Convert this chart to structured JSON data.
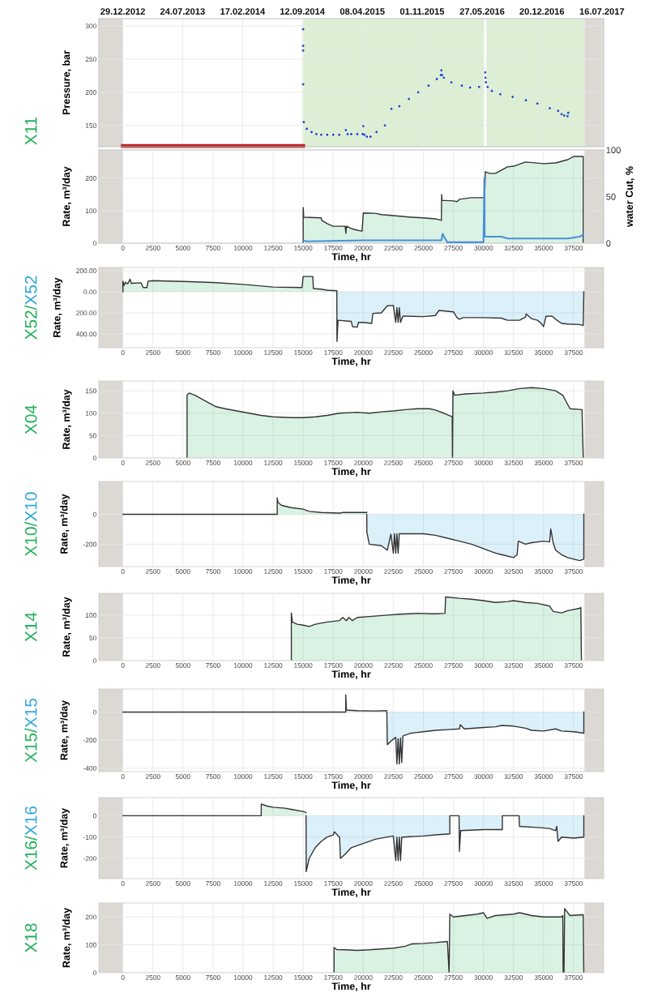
{
  "chart_data": [
    {
      "type": "scatter",
      "ylabel": "Pressure, bar",
      "xlim": [
        -2000,
        40000
      ],
      "ylim": [
        118,
        311
      ],
      "yticks": [
        150,
        200,
        250,
        300
      ],
      "x2lim": [
        "2012-10-07",
        "2017-07-22"
      ],
      "x2ticks": [
        {
          "value": "2012-12-29",
          "label": "29.12.2012"
        },
        {
          "value": "2013-07-24",
          "label": "24.07.2013"
        },
        {
          "value": "2014-02-17",
          "label": "17.02.2014"
        },
        {
          "value": "2014-09-12",
          "label": "12.09.2014"
        },
        {
          "value": "2015-04-08",
          "label": "08.04.2015"
        },
        {
          "value": "2015-11-01",
          "label": "01.11.2015"
        },
        {
          "value": "2016-05-27",
          "label": "27.05.2016"
        },
        {
          "value": "2016-12-20",
          "label": "20.12.2016"
        },
        {
          "value": "2017-07-16",
          "label": "16.07.2017"
        }
      ],
      "grid": true,
      "bands": [
        {
          "axis": "x",
          "from": -2000,
          "to": 0,
          "color": "#dcd9d5"
        },
        {
          "axis": "x",
          "from": 38400,
          "to": 40000,
          "color": "#dcd9d5"
        },
        {
          "axis": "x",
          "from": 15000,
          "to": 30050,
          "color": "#dcefd5"
        },
        {
          "axis": "x",
          "from": 30250,
          "to": 38400,
          "color": "#dcefd5"
        }
      ],
      "series": [
        {
          "color": "#1f3fd0",
          "marker": "circle",
          "x": [
            15000,
            15000,
            15000,
            15000,
            15050,
            15300,
            15700,
            16100,
            16500,
            17000,
            17500,
            18000,
            18550,
            18700,
            19000,
            19500,
            19950,
            20000,
            20100,
            20300,
            20600,
            21100,
            21800,
            22340,
            23000,
            23800,
            24570,
            25430,
            26120,
            26450,
            26500,
            26550,
            26700,
            27330,
            28200,
            28890,
            29630,
            30150,
            30170,
            30200,
            30350,
            30700,
            31400,
            32430,
            33530,
            34490,
            35520,
            36210,
            36500,
            36720,
            37000,
            37050
          ],
          "values": [
            295,
            270,
            263,
            212,
            155,
            145,
            140,
            137,
            136,
            136,
            136,
            136,
            143,
            137,
            137,
            137,
            137,
            149,
            136,
            133,
            133,
            140,
            150,
            175,
            179,
            190,
            200,
            210,
            220,
            226,
            233,
            226,
            222,
            215,
            210,
            207,
            208,
            230,
            222,
            215,
            208,
            202,
            197,
            193,
            188,
            183,
            176,
            172,
            167,
            165,
            164,
            169
          ]
        },
        {
          "type": "line",
          "color": "#b22222",
          "x": [
            0,
            15000
          ],
          "values": [
            119,
            119
          ]
        }
      ]
    },
    {
      "type": "area",
      "title": "X11",
      "ylabel": "Rate, m³/day",
      "y2label": "water Cut, %",
      "xlabel": "Time, hr",
      "xlim": [
        -2000,
        40000
      ],
      "xticks": [
        0,
        2500,
        5000,
        7500,
        10000,
        12500,
        15000,
        17500,
        20000,
        22500,
        25000,
        27500,
        30000,
        32500,
        35000,
        37500
      ],
      "ylim": [
        0,
        287
      ],
      "yticks": [
        0,
        100,
        200
      ],
      "y2lim": [
        0,
        100
      ],
      "y2ticks": [
        0,
        50,
        100
      ],
      "grid": true,
      "bands": [
        {
          "axis": "x",
          "from": -2000,
          "to": 0,
          "color": "#dcd9d5"
        },
        {
          "axis": "x",
          "from": 38400,
          "to": 40000,
          "color": "#dcd9d5"
        }
      ],
      "series": [
        {
          "color": "#23b05a",
          "x": [
            15000,
            15000,
            15050,
            16500,
            16550,
            17000,
            17500,
            18500,
            18550,
            18600,
            19000,
            19500,
            19900,
            20000,
            21000,
            21500,
            22500,
            24000,
            25000,
            26000,
            26500,
            26520,
            26550,
            27500,
            27800,
            28000,
            29000,
            30100,
            30150,
            30500,
            31000,
            31500,
            32000,
            32500,
            33500,
            35000,
            36000,
            37000,
            37500,
            38300,
            38300
          ],
          "values": [
            0,
            110,
            80,
            78,
            70,
            60,
            52,
            52,
            30,
            52,
            45,
            40,
            37,
            93,
            92,
            88,
            85,
            80,
            78,
            75,
            70,
            150,
            132,
            130,
            128,
            135,
            140,
            140,
            220,
            215,
            215,
            225,
            235,
            237,
            250,
            245,
            247,
            257,
            267,
            267,
            0
          ]
        },
        {
          "type": "line",
          "axis": "y2",
          "color": "#4a90d9",
          "x": [
            15000,
            15300,
            20000,
            26500,
            26600,
            26800,
            27000,
            30000,
            30080,
            30100,
            30200,
            31500,
            32000,
            35000,
            37000,
            38000,
            38300
          ],
          "values": [
            3,
            2,
            3,
            3,
            10,
            5,
            1,
            1,
            70,
            7,
            7,
            7,
            5,
            5,
            5,
            7,
            9
          ]
        }
      ]
    },
    {
      "type": "area",
      "title": "X52/X52",
      "ylabel": "Rate, m³/day",
      "xlabel": "Time, hr",
      "xlim": [
        -2000,
        40000
      ],
      "xticks": [
        0,
        2500,
        5000,
        7500,
        10000,
        12500,
        15000,
        17500,
        20000,
        22500,
        25000,
        27500,
        30000,
        32500,
        35000,
        37500
      ],
      "ylim": [
        -530,
        230
      ],
      "yticks": [
        {
          "value": 200,
          "label": "200.00"
        },
        {
          "value": 0,
          "label": "0.00"
        },
        {
          "value": -200,
          "label": "200.00"
        },
        {
          "value": -400,
          "label": "400.00"
        }
      ],
      "grid": true,
      "bands": [
        {
          "axis": "x",
          "from": -2000,
          "to": 0,
          "color": "#dcd9d5"
        },
        {
          "axis": "x",
          "from": 38400,
          "to": 40000,
          "color": "#dcd9d5"
        }
      ],
      "series": [
        {
          "color": "#23b05a",
          "x": [
            0,
            0,
            100,
            200,
            400,
            600,
            700,
            1500,
            1700,
            2000,
            2100,
            2500,
            5000,
            7500,
            10000,
            12500,
            14900,
            15000,
            15800,
            15850,
            16500,
            17000,
            17800
          ],
          "values": [
            0,
            100,
            60,
            90,
            75,
            120,
            80,
            85,
            40,
            40,
            100,
            105,
            98,
            88,
            70,
            45,
            40,
            145,
            145,
            30,
            25,
            15,
            10
          ]
        },
        {
          "color": "#2fa8dc",
          "x": [
            17800,
            17810,
            17900,
            19000,
            19100,
            19500,
            19600,
            20000,
            20700,
            20800,
            21500,
            22000,
            22500,
            22700,
            22800,
            22900,
            23000,
            23100,
            23300,
            25000,
            26000,
            26300,
            27500,
            27800,
            28000,
            28300,
            30000,
            31500,
            32000,
            33000,
            33500,
            33550,
            34000,
            34500,
            34800,
            35000,
            35200,
            35700,
            36000,
            36500,
            37000,
            38000,
            38300,
            38350
          ],
          "values": [
            0,
            -470,
            -270,
            -280,
            -330,
            -335,
            -290,
            -290,
            -300,
            -205,
            -200,
            -133,
            -130,
            -290,
            -150,
            -290,
            -150,
            -290,
            -230,
            -235,
            -225,
            -177,
            -190,
            -245,
            -260,
            -245,
            -245,
            -250,
            -270,
            -270,
            -240,
            -210,
            -255,
            -270,
            -300,
            -330,
            -233,
            -230,
            -260,
            -300,
            -305,
            -310,
            -320,
            0
          ]
        }
      ]
    },
    {
      "type": "area",
      "title": "X04",
      "ylabel": "Rate, m³/day",
      "xlabel": "Time, hr",
      "xlim": [
        -2000,
        40000
      ],
      "xticks": [
        0,
        2500,
        5000,
        7500,
        10000,
        12500,
        15000,
        17500,
        20000,
        22500,
        25000,
        27500,
        30000,
        32500,
        35000,
        37500
      ],
      "ylim": [
        0,
        172
      ],
      "yticks": [
        0,
        50,
        100,
        150
      ],
      "grid": true,
      "bands": [
        {
          "axis": "x",
          "from": -2000,
          "to": 0,
          "color": "#dcd9d5"
        },
        {
          "axis": "x",
          "from": 38400,
          "to": 40000,
          "color": "#dcd9d5"
        }
      ],
      "series": [
        {
          "color": "#23b05a",
          "x": [
            5340,
            5340,
            5500,
            6000,
            7000,
            7700,
            8500,
            9500,
            10500,
            11500,
            12500,
            14000,
            15000,
            16000,
            17000,
            18000,
            19500,
            20500,
            21500,
            22500,
            23500,
            24500,
            25500,
            26000,
            26700,
            27400,
            27420,
            27460,
            27600,
            28500,
            30000,
            31000,
            32000,
            33000,
            34000,
            35000,
            36000,
            36600,
            36900,
            37200,
            38200,
            38300
          ],
          "values": [
            0,
            140,
            145,
            140,
            125,
            115,
            110,
            105,
            100,
            95,
            92,
            90,
            90,
            92,
            95,
            100,
            102,
            100,
            103,
            105,
            108,
            110,
            110,
            107,
            100,
            92,
            0,
            150,
            140,
            143,
            145,
            147,
            150,
            155,
            157,
            155,
            150,
            140,
            125,
            110,
            108,
            0
          ]
        }
      ]
    },
    {
      "type": "area",
      "title": "X10/X10",
      "ylabel": "Rate, m³/day",
      "xlabel": "Time, hr",
      "xlim": [
        -2000,
        40000
      ],
      "xticks": [
        0,
        2500,
        5000,
        7500,
        10000,
        12500,
        15000,
        17500,
        20000,
        22500,
        25000,
        27500,
        30000,
        32500,
        35000,
        37500
      ],
      "ylim": [
        -350,
        220
      ],
      "yticks": [
        0,
        -200
      ],
      "grid": true,
      "bands": [
        {
          "axis": "x",
          "from": -2000,
          "to": 0,
          "color": "#dcd9d5"
        },
        {
          "axis": "x",
          "from": 38400,
          "to": 40000,
          "color": "#dcd9d5"
        }
      ],
      "series": [
        {
          "color": "#23b05a",
          "x": [
            0,
            12840,
            12840,
            12900,
            13200,
            14000,
            15000,
            15500,
            16500,
            17500,
            18000,
            18300,
            20290
          ],
          "values": [
            0,
            0,
            110,
            80,
            60,
            45,
            35,
            20,
            12,
            10,
            8,
            12,
            12
          ]
        },
        {
          "color": "#2fa8dc",
          "x": [
            20290,
            20300,
            20500,
            21500,
            22000,
            22300,
            22500,
            22600,
            22700,
            22800,
            22900,
            23000,
            23100,
            25000,
            26000,
            27000,
            28000,
            29000,
            30000,
            31000,
            31500,
            32500,
            32800,
            32900,
            33500,
            34000,
            35000,
            35500,
            35600,
            35800,
            36000,
            36500,
            37000,
            38000,
            38350,
            38350
          ],
          "values": [
            0,
            -120,
            -200,
            -210,
            -240,
            -132,
            -260,
            -130,
            -260,
            -130,
            -260,
            -130,
            -130,
            -130,
            -140,
            -160,
            -180,
            -200,
            -230,
            -260,
            -270,
            -290,
            -270,
            -180,
            -200,
            -190,
            -180,
            -185,
            -98,
            -190,
            -240,
            -270,
            -290,
            -310,
            -300,
            0
          ]
        }
      ]
    },
    {
      "type": "area",
      "title": "X14",
      "ylabel": "Rate, m³/day",
      "xlabel": "Time, hr",
      "xlim": [
        -2000,
        40000
      ],
      "xticks": [
        0,
        2500,
        5000,
        7500,
        10000,
        12500,
        15000,
        17500,
        20000,
        22500,
        25000,
        27500,
        30000,
        32500,
        35000,
        37500
      ],
      "ylim": [
        0,
        148
      ],
      "yticks": [
        0,
        50,
        100
      ],
      "grid": true,
      "bands": [
        {
          "axis": "x",
          "from": -2000,
          "to": 0,
          "color": "#dcd9d5"
        },
        {
          "axis": "x",
          "from": 38400,
          "to": 40000,
          "color": "#dcd9d5"
        }
      ],
      "series": [
        {
          "color": "#23b05a",
          "x": [
            14015,
            14015,
            14100,
            14500,
            15000,
            15500,
            16000,
            17000,
            18000,
            18300,
            18600,
            18800,
            19100,
            19500,
            20500,
            22000,
            23000,
            24500,
            26000,
            26800,
            26850,
            28000,
            29000,
            30000,
            31000,
            32000,
            32500,
            33500,
            34500,
            35500,
            35800,
            36500,
            37000,
            38000,
            38100,
            38150
          ],
          "values": [
            0,
            105,
            85,
            80,
            78,
            75,
            80,
            85,
            88,
            95,
            88,
            95,
            88,
            95,
            97,
            100,
            102,
            104,
            103,
            104,
            140,
            137,
            135,
            132,
            128,
            130,
            132,
            128,
            126,
            120,
            108,
            105,
            110,
            115,
            117,
            0
          ]
        }
      ]
    },
    {
      "type": "area",
      "title": "X15/X15",
      "ylabel": "Rate, m³/day",
      "xlabel": "Time, hr",
      "xlim": [
        -2000,
        40000
      ],
      "xticks": [
        0,
        2500,
        5000,
        7500,
        10000,
        12500,
        15000,
        17500,
        20000,
        22500,
        25000,
        27500,
        30000,
        32500,
        35000,
        37500
      ],
      "ylim": [
        -425,
        165
      ],
      "yticks": [
        0,
        -200,
        -400
      ],
      "grid": true,
      "bands": [
        {
          "axis": "x",
          "from": -2000,
          "to": 0,
          "color": "#dcd9d5"
        },
        {
          "axis": "x",
          "from": 38400,
          "to": 40000,
          "color": "#dcd9d5"
        }
      ],
      "series": [
        {
          "color": "#23b05a",
          "x": [
            0,
            18540,
            18540,
            18600,
            19500,
            21000,
            21960
          ],
          "values": [
            0,
            0,
            124,
            15,
            10,
            8,
            10
          ]
        },
        {
          "color": "#2fa8dc",
          "x": [
            21960,
            22000,
            22400,
            22700,
            22800,
            22900,
            23000,
            23100,
            23200,
            23300,
            24000,
            25000,
            26000,
            27000,
            28000,
            28070,
            28400,
            30000,
            31000,
            31500,
            32500,
            33500,
            34000,
            35000,
            36000,
            36500,
            37500,
            38350,
            38350
          ],
          "values": [
            0,
            -232,
            -200,
            -180,
            -370,
            -190,
            -370,
            -185,
            -360,
            -170,
            -150,
            -140,
            -130,
            -125,
            -120,
            -90,
            -120,
            -110,
            -105,
            -95,
            -100,
            -115,
            -130,
            -135,
            -120,
            -135,
            -140,
            -150,
            0
          ]
        }
      ]
    },
    {
      "type": "area",
      "title": "X16/X16",
      "ylabel": "Rate, m³/day",
      "xlabel": "Time, hr",
      "xlim": [
        -2000,
        40000
      ],
      "xticks": [
        0,
        2500,
        5000,
        7500,
        10000,
        12500,
        15000,
        17500,
        20000,
        22500,
        25000,
        27500,
        30000,
        32500,
        35000,
        37500
      ],
      "ylim": [
        -295,
        85
      ],
      "yticks": [
        0,
        -100,
        -200
      ],
      "grid": true,
      "bands": [
        {
          "axis": "x",
          "from": -2000,
          "to": 0,
          "color": "#dcd9d5"
        },
        {
          "axis": "x",
          "from": 38400,
          "to": 40000,
          "color": "#dcd9d5"
        }
      ],
      "series": [
        {
          "color": "#23b05a",
          "x": [
            0,
            11510,
            11510,
            12000,
            12500,
            13500,
            14000,
            15000,
            15240
          ],
          "values": [
            0,
            0,
            55,
            45,
            40,
            35,
            30,
            20,
            15
          ]
        },
        {
          "color": "#2fa8dc",
          "x": [
            15240,
            15250,
            15500,
            16000,
            16500,
            17000,
            17500,
            17600,
            18000,
            18030,
            18100,
            18500,
            19000,
            20000,
            21000,
            22000,
            22500,
            22700,
            22800,
            22900,
            23000,
            23100,
            23200,
            23300,
            25000,
            26000,
            27200,
            27200,
            27970,
            28000,
            28100,
            30000,
            31570,
            31570,
            32960,
            33000,
            34500,
            35500,
            36000,
            36100,
            36200,
            36500,
            37500,
            38350,
            38350
          ],
          "values": [
            0,
            -262,
            -200,
            -150,
            -120,
            -100,
            -90,
            -75,
            -100,
            -100,
            -200,
            -180,
            -150,
            -130,
            -110,
            -100,
            -95,
            -210,
            -100,
            -210,
            -100,
            -210,
            -100,
            -100,
            -95,
            -90,
            -85,
            0,
            0,
            -167,
            -70,
            -65,
            -65,
            0,
            0,
            -50,
            -55,
            -60,
            -70,
            -50,
            -120,
            -100,
            -105,
            -100,
            0
          ]
        }
      ]
    },
    {
      "type": "area",
      "title": "X18",
      "ylabel": "Rate, m³/day",
      "xlabel": "Time, hr",
      "xlim": [
        -2000,
        40000
      ],
      "xticks": [
        0,
        2500,
        5000,
        7500,
        10000,
        12500,
        15000,
        17500,
        20000,
        22500,
        25000,
        27500,
        30000,
        32500,
        35000,
        37500
      ],
      "ylim": [
        0,
        250
      ],
      "yticks": [
        0,
        100,
        200
      ],
      "grid": true,
      "bands": [
        {
          "axis": "x",
          "from": -2000,
          "to": 0,
          "color": "#dcd9d5"
        },
        {
          "axis": "x",
          "from": 38400,
          "to": 40000,
          "color": "#dcd9d5"
        }
      ],
      "series": [
        {
          "color": "#23b05a",
          "x": [
            17570,
            17570,
            17800,
            18500,
            19500,
            20500,
            21500,
            22500,
            23500,
            24000,
            25000,
            26000,
            27000,
            27140,
            27200,
            27500,
            28500,
            29500,
            30000,
            30300,
            31000,
            32500,
            33000,
            34000,
            35000,
            36500,
            36600,
            36630,
            36700,
            36750,
            37200,
            38300,
            38350
          ],
          "values": [
            0,
            90,
            83,
            82,
            80,
            82,
            85,
            88,
            95,
            103,
            105,
            108,
            112,
            0,
            210,
            200,
            205,
            210,
            215,
            195,
            205,
            210,
            215,
            205,
            200,
            200,
            205,
            0,
            0,
            230,
            205,
            208,
            0
          ]
        }
      ]
    }
  ]
}
